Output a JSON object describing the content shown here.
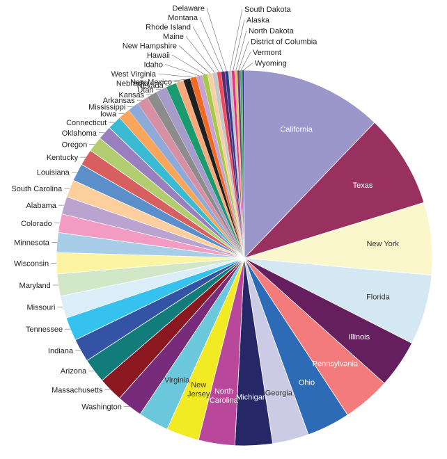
{
  "chart_data": {
    "type": "pie",
    "title": "",
    "start": "12 o'clock, clockwise",
    "slices": [
      {
        "label": "California",
        "value": 12.1,
        "color": "#9b97cb",
        "label_color": "#ffffff",
        "label_placement": "inside"
      },
      {
        "label": "Texas",
        "value": 8.0,
        "color": "#98315f",
        "label_color": "#ffffff",
        "label_placement": "inside"
      },
      {
        "label": "New York",
        "value": 6.2,
        "color": "#fbf7cc",
        "label_color": "#333333",
        "label_placement": "inside"
      },
      {
        "label": "Florida",
        "value": 6.0,
        "color": "#d4e8f3",
        "label_color": "#333333",
        "label_placement": "inside"
      },
      {
        "label": "Illinois",
        "value": 4.1,
        "color": "#651e5e",
        "label_color": "#ffffff",
        "label_placement": "inside"
      },
      {
        "label": "Pennsylvania",
        "value": 4.1,
        "color": "#f37b7b",
        "label_color": "#ffffff",
        "label_placement": "inside"
      },
      {
        "label": "Ohio",
        "value": 3.7,
        "color": "#2e6bb6",
        "label_color": "#ffffff",
        "label_placement": "inside"
      },
      {
        "label": "Georgia",
        "value": 3.1,
        "color": "#cccbe6",
        "label_color": "#333333",
        "label_placement": "inside"
      },
      {
        "label": "Michigan",
        "value": 3.2,
        "color": "#262766",
        "label_color": "#ffffff",
        "label_placement": "inside"
      },
      {
        "label": "North Carolina",
        "value": 3.1,
        "color": "#b9489b",
        "label_color": "#ffffff",
        "label_placement": "inside"
      },
      {
        "label": "New Jersey",
        "value": 2.8,
        "color": "#f2ea22",
        "label_color": "#333333",
        "label_placement": "inside"
      },
      {
        "label": "Virginia",
        "value": 2.6,
        "color": "#6bc7dc",
        "label_color": "#333333",
        "label_placement": "inside"
      },
      {
        "label": "Washington",
        "value": 2.2,
        "color": "#782a7b",
        "label_color": "#222222",
        "label_placement": "outside"
      },
      {
        "label": "Massachusetts",
        "value": 2.1,
        "color": "#8b1820",
        "label_color": "#222222",
        "label_placement": "outside"
      },
      {
        "label": "Arizona",
        "value": 2.1,
        "color": "#117c7a",
        "label_color": "#222222",
        "label_placement": "outside"
      },
      {
        "label": "Indiana",
        "value": 2.0,
        "color": "#3553a4",
        "label_color": "#222222",
        "label_placement": "outside"
      },
      {
        "label": "Tennessee",
        "value": 2.0,
        "color": "#36c2ef",
        "label_color": "#222222",
        "label_placement": "outside"
      },
      {
        "label": "Missouri",
        "value": 1.9,
        "color": "#dbeef8",
        "label_color": "#222222",
        "label_placement": "outside"
      },
      {
        "label": "Maryland",
        "value": 1.9,
        "color": "#d1e7c8",
        "label_color": "#222222",
        "label_placement": "outside"
      },
      {
        "label": "Wisconsin",
        "value": 1.8,
        "color": "#fbf4a2",
        "label_color": "#222222",
        "label_placement": "outside"
      },
      {
        "label": "Minnesota",
        "value": 1.7,
        "color": "#a8cde9",
        "label_color": "#222222",
        "label_placement": "outside"
      },
      {
        "label": "Colorado",
        "value": 1.6,
        "color": "#f39cc3",
        "label_color": "#222222",
        "label_placement": "outside"
      },
      {
        "label": "Alabama",
        "value": 1.5,
        "color": "#bba3cf",
        "label_color": "#222222",
        "label_placement": "outside"
      },
      {
        "label": "South Carolina",
        "value": 1.5,
        "color": "#fdcf9c",
        "label_color": "#222222",
        "label_placement": "outside"
      },
      {
        "label": "Louisiana",
        "value": 1.5,
        "color": "#5a8fc9",
        "label_color": "#222222",
        "label_placement": "outside"
      },
      {
        "label": "Kentucky",
        "value": 1.4,
        "color": "#d75f5f",
        "label_color": "#222222",
        "label_placement": "outside"
      },
      {
        "label": "Oregon",
        "value": 1.3,
        "color": "#b2cd6f",
        "label_color": "#222222",
        "label_placement": "outside"
      },
      {
        "label": "Oklahoma",
        "value": 1.2,
        "color": "#9a7fbe",
        "label_color": "#222222",
        "label_placement": "outside"
      },
      {
        "label": "Connecticut",
        "value": 1.2,
        "color": "#3bbad3",
        "label_color": "#222222",
        "label_placement": "outside"
      },
      {
        "label": "Iowa",
        "value": 1.0,
        "color": "#f9a65a",
        "label_color": "#222222",
        "label_placement": "outside"
      },
      {
        "label": "Mississippi",
        "value": 0.95,
        "color": "#8eaad8",
        "label_color": "#222222",
        "label_placement": "outside"
      },
      {
        "label": "Arkansas",
        "value": 0.95,
        "color": "#d68fa3",
        "label_color": "#222222",
        "label_placement": "outside"
      },
      {
        "label": "Kansas",
        "value": 0.9,
        "color": "#8c8c8c",
        "label_color": "#222222",
        "label_placement": "outside"
      },
      {
        "label": "Utah",
        "value": 0.9,
        "color": "#a79bc9",
        "label_color": "#222222",
        "label_placement": "outside"
      },
      {
        "label": "Nevada",
        "value": 0.9,
        "color": "#1a9b6f",
        "label_color": "#222222",
        "label_placement": "outside"
      },
      {
        "label": "New Mexico",
        "value": 0.65,
        "color": "#f6a97a",
        "label_color": "#222222",
        "label_placement": "outside"
      },
      {
        "label": "Nebraska",
        "value": 0.6,
        "color": "#1f1f1f",
        "label_color": "#222222",
        "label_placement": "outside"
      },
      {
        "label": "West Virginia",
        "value": 0.55,
        "color": "#f26a21",
        "label_color": "#222222",
        "label_placement": "outside"
      },
      {
        "label": "Idaho",
        "value": 0.5,
        "color": "#c8a2d4",
        "label_color": "#222222",
        "label_placement": "outside"
      },
      {
        "label": "Hawaii",
        "value": 0.45,
        "color": "#a6c94a",
        "label_color": "#222222",
        "label_placement": "outside"
      },
      {
        "label": "New Hampshire",
        "value": 0.42,
        "color": "#f6cfa2",
        "label_color": "#222222",
        "label_placement": "outside"
      },
      {
        "label": "Maine",
        "value": 0.4,
        "color": "#c7c7c7",
        "label_color": "#222222",
        "label_placement": "outside"
      },
      {
        "label": "Rhode Island",
        "value": 0.35,
        "color": "#ef4a5a",
        "label_color": "#222222",
        "label_placement": "outside"
      },
      {
        "label": "Montana",
        "value": 0.32,
        "color": "#5b2a6e",
        "label_color": "#222222",
        "label_placement": "outside"
      },
      {
        "label": "Delaware",
        "value": 0.3,
        "color": "#2f3c8f",
        "label_color": "#222222",
        "label_placement": "outside"
      },
      {
        "label": "South Dakota",
        "value": 0.27,
        "color": "#c4c4c4",
        "label_color": "#222222",
        "label_placement": "outside"
      },
      {
        "label": "Alaska",
        "value": 0.25,
        "color": "#ed2c8a",
        "label_color": "#222222",
        "label_placement": "outside"
      },
      {
        "label": "North Dakota",
        "value": 0.23,
        "color": "#d9c36a",
        "label_color": "#222222",
        "label_placement": "outside"
      },
      {
        "label": "District of Columbia",
        "value": 0.22,
        "color": "#6b3a8a",
        "label_color": "#222222",
        "label_placement": "outside"
      },
      {
        "label": "Vermont",
        "value": 0.2,
        "color": "#43b649",
        "label_color": "#222222",
        "label_placement": "outside"
      },
      {
        "label": "Wyoming",
        "value": 0.18,
        "color": "#3a3a9a",
        "label_color": "#222222",
        "label_placement": "outside"
      }
    ]
  }
}
